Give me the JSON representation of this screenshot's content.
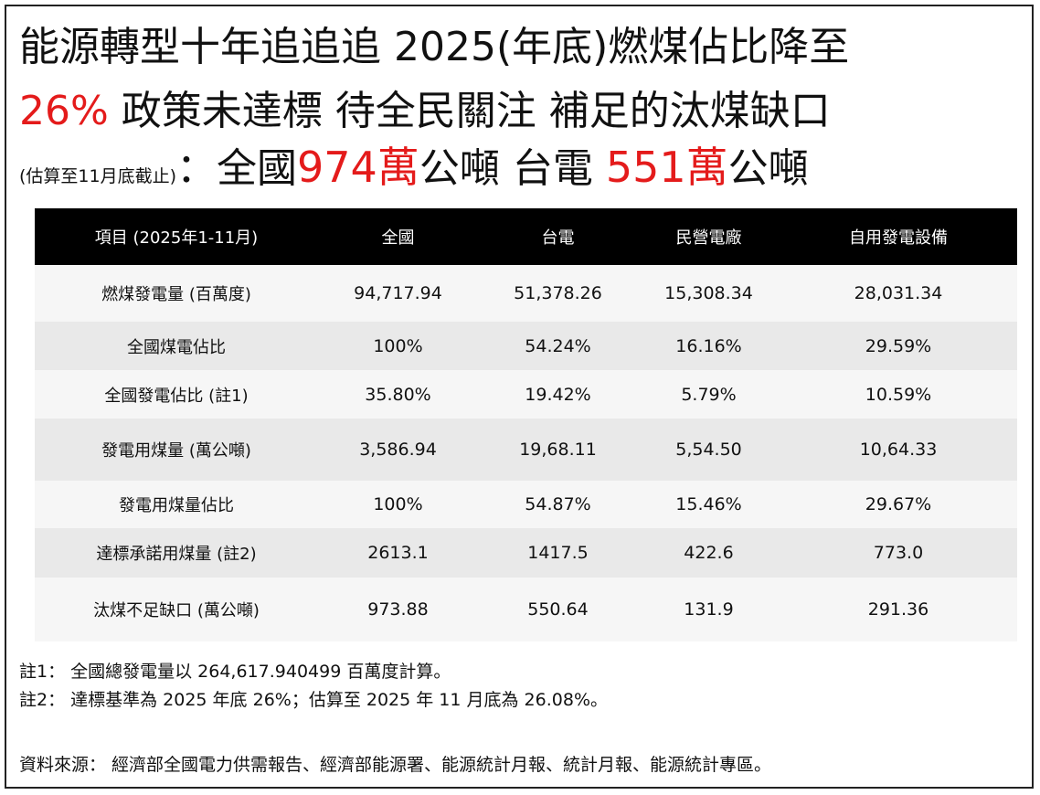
{
  "title": {
    "line1": "能源轉型十年追追追  2025(年底)燃煤佔比降至",
    "line2_red": "26%",
    "line2_rest": " 政策未達標  待全民關注 補足的汰煤缺口",
    "line3_small": "(估算至11月底截止)",
    "line3_colon": "：",
    "line3_a": "全國",
    "line3_a_num": "974萬",
    "line3_b": "公噸 台電 ",
    "line3_b_num": "551萬",
    "line3_c": "公噸"
  },
  "table": {
    "headers": [
      "項目 (2025年1-11月)",
      "全國",
      "台電",
      "民營電廠",
      "自用發電設備"
    ],
    "rows": [
      [
        "燃煤發電量 (百萬度)",
        "94,717.94",
        "51,378.26",
        "15,308.34",
        "28,031.34"
      ],
      [
        "全國煤電佔比",
        "100%",
        "54.24%",
        "16.16%",
        "29.59%"
      ],
      [
        "全國發電佔比 (註1)",
        "35.80%",
        "19.42%",
        "5.79%",
        "10.59%"
      ],
      [
        "發電用煤量 (萬公噸)",
        "3,586.94",
        "19,68.11",
        "5,54.50",
        "10,64.33"
      ],
      [
        "發電用煤量佔比",
        "100%",
        "54.87%",
        "15.46%",
        "29.67%"
      ],
      [
        "達標承諾用煤量 (註2)",
        "2613.1",
        "1417.5",
        "422.6",
        "773.0"
      ],
      [
        "汰煤不足缺口 (萬公噸)",
        "973.88",
        "550.64",
        "131.9",
        "291.36"
      ]
    ]
  },
  "notes": {
    "note1": "註1： 全國總發電量以 264,617.940499 百萬度計算。",
    "note2": "註2： 達標基準為 2025 年底 26%；估算至 2025 年 11 月底為 26.08%。"
  },
  "source": "資料來源： 經濟部全國電力供需報告、經濟部能源署、能源統計月報、統計月報、能源統計專區。",
  "colors": {
    "accent_red": "#e41b1b",
    "header_bg": "#000000",
    "row_alt": "#e9e9e9",
    "row_plain": "#f6f6f6"
  }
}
